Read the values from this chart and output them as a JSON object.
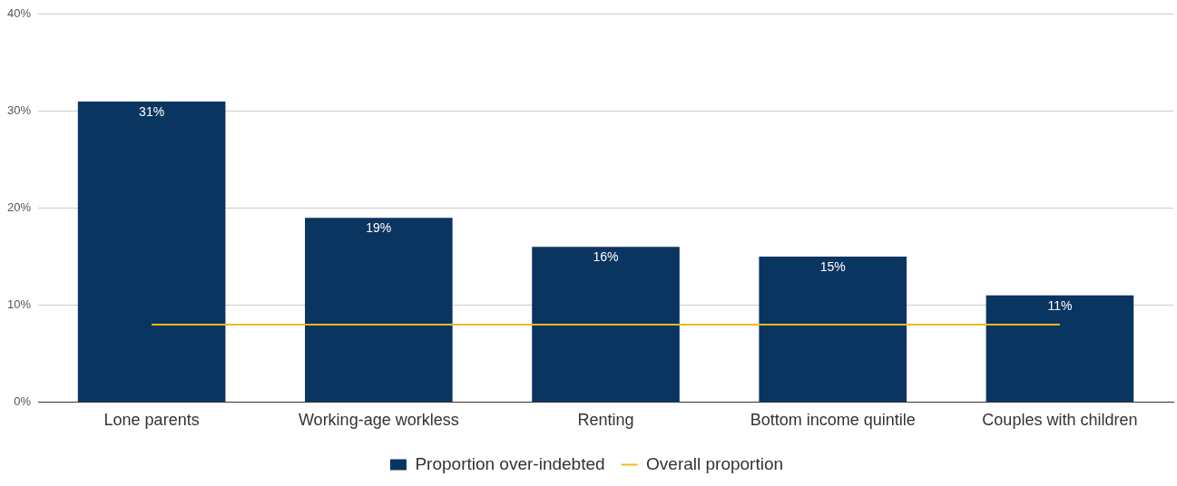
{
  "chart_data": {
    "type": "bar",
    "categories": [
      "Lone parents",
      "Working-age workless",
      "Renting",
      "Bottom income quintile",
      "Couples with children"
    ],
    "series": [
      {
        "name": "Proportion over-indebted",
        "color": "#0b3561",
        "values": [
          31,
          19,
          16,
          15,
          11
        ],
        "value_labels": [
          "31%",
          "19%",
          "16%",
          "15%",
          "11%"
        ]
      },
      {
        "name": "Overall proportion",
        "type": "line",
        "color": "#f2b81e",
        "values": [
          8,
          8,
          8,
          8,
          8
        ]
      }
    ],
    "ylim": [
      0,
      40
    ],
    "yticks": [
      {
        "value": 0,
        "label": "0%"
      },
      {
        "value": 10,
        "label": "10%"
      },
      {
        "value": 20,
        "label": "20%"
      },
      {
        "value": 30,
        "label": "30%"
      },
      {
        "value": 40,
        "label": "40%"
      }
    ],
    "grid": "y",
    "legend": "bottom",
    "marker": "none"
  }
}
